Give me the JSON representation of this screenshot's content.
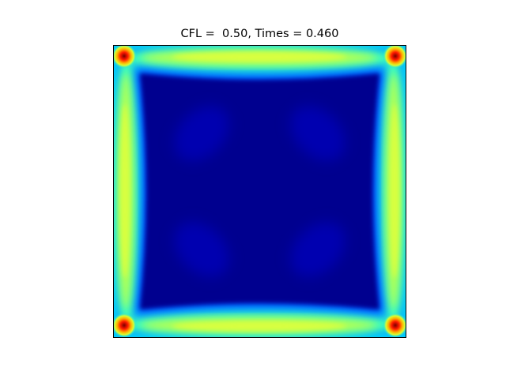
{
  "figure": {
    "title": "CFL =  0.50, Times = 0.460"
  },
  "colormap": {
    "name": "jet",
    "background": "#00008f",
    "low": "#0000a8",
    "mid": "#00b4ff",
    "high": "#c8ff48",
    "peak": "#ff1400",
    "frame": "#000000"
  }
}
